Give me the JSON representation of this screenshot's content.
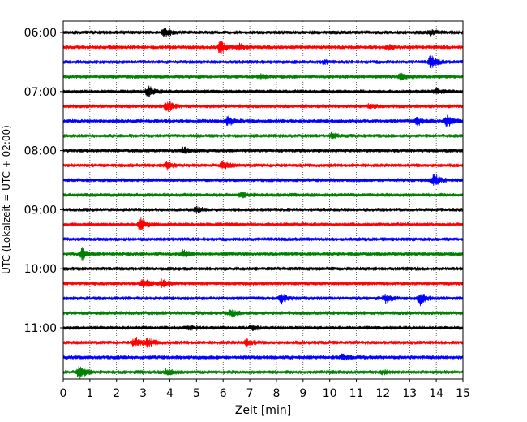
{
  "chart_data": {
    "type": "line",
    "title": "",
    "xlabel": "Zeit  [min]",
    "ylabel": "UTC (Lokalzeit = UTC + 02:00)",
    "xlim": [
      0,
      15
    ],
    "x_ticks": [
      0,
      1,
      2,
      3,
      4,
      5,
      6,
      7,
      8,
      9,
      10,
      11,
      12,
      13,
      14,
      15
    ],
    "y_ticks": [
      "06:00",
      "07:00",
      "08:00",
      "09:00",
      "10:00",
      "11:00"
    ],
    "y_tick_trace_index": [
      0,
      4,
      8,
      12,
      16,
      20
    ],
    "trace_interval_min": 15,
    "trace_colors": [
      "#000000",
      "#ff0000",
      "#0000ff",
      "#008000"
    ],
    "grid": true,
    "series": [
      {
        "start": "06:00",
        "bursts": [
          {
            "t": 3.8,
            "a": 1.0
          },
          {
            "t": 13.8,
            "a": 0.5
          }
        ]
      },
      {
        "start": "06:15",
        "bursts": [
          {
            "t": 5.9,
            "a": 1.2
          },
          {
            "t": 6.6,
            "a": 0.6
          },
          {
            "t": 12.2,
            "a": 0.35
          }
        ]
      },
      {
        "start": "06:30",
        "bursts": [
          {
            "t": 9.8,
            "a": 0.3
          },
          {
            "t": 13.8,
            "a": 1.2
          }
        ]
      },
      {
        "start": "06:45",
        "bursts": [
          {
            "t": 7.4,
            "a": 0.35
          },
          {
            "t": 12.7,
            "a": 0.7
          }
        ]
      },
      {
        "start": "07:00",
        "bursts": [
          {
            "t": 3.2,
            "a": 1.0
          },
          {
            "t": 14.0,
            "a": 0.5
          }
        ]
      },
      {
        "start": "07:15",
        "bursts": [
          {
            "t": 3.9,
            "a": 1.1
          },
          {
            "t": 11.5,
            "a": 0.35
          }
        ]
      },
      {
        "start": "07:30",
        "bursts": [
          {
            "t": 6.2,
            "a": 0.9
          },
          {
            "t": 13.3,
            "a": 0.7
          },
          {
            "t": 14.4,
            "a": 1.1
          }
        ]
      },
      {
        "start": "07:45",
        "bursts": [
          {
            "t": 10.1,
            "a": 0.5
          }
        ]
      },
      {
        "start": "08:00",
        "bursts": [
          {
            "t": 4.5,
            "a": 0.6
          }
        ]
      },
      {
        "start": "08:15",
        "bursts": [
          {
            "t": 3.9,
            "a": 0.7
          },
          {
            "t": 6.0,
            "a": 0.7
          }
        ]
      },
      {
        "start": "08:30",
        "bursts": [
          {
            "t": 13.9,
            "a": 1.3
          }
        ]
      },
      {
        "start": "08:45",
        "bursts": [
          {
            "t": 6.7,
            "a": 0.4
          }
        ]
      },
      {
        "start": "09:00",
        "bursts": [
          {
            "t": 5.0,
            "a": 0.5
          }
        ]
      },
      {
        "start": "09:15",
        "bursts": [
          {
            "t": 2.9,
            "a": 1.1
          }
        ]
      },
      {
        "start": "09:30",
        "bursts": []
      },
      {
        "start": "09:45",
        "bursts": [
          {
            "t": 0.7,
            "a": 1.1
          },
          {
            "t": 4.5,
            "a": 0.7
          }
        ]
      },
      {
        "start": "10:00",
        "bursts": []
      },
      {
        "start": "10:15",
        "bursts": [
          {
            "t": 3.0,
            "a": 0.9
          },
          {
            "t": 3.7,
            "a": 0.7
          }
        ]
      },
      {
        "start": "10:30",
        "bursts": [
          {
            "t": 8.2,
            "a": 0.8
          },
          {
            "t": 12.1,
            "a": 0.8
          },
          {
            "t": 13.4,
            "a": 1.2
          }
        ]
      },
      {
        "start": "10:45",
        "bursts": [
          {
            "t": 6.3,
            "a": 0.6
          }
        ]
      },
      {
        "start": "11:00",
        "bursts": [
          {
            "t": 4.7,
            "a": 0.4
          },
          {
            "t": 7.1,
            "a": 0.4
          }
        ]
      },
      {
        "start": "11:15",
        "bursts": [
          {
            "t": 2.7,
            "a": 1.0
          },
          {
            "t": 3.2,
            "a": 0.8
          },
          {
            "t": 6.9,
            "a": 0.6
          }
        ]
      },
      {
        "start": "11:30",
        "bursts": [
          {
            "t": 10.5,
            "a": 0.5
          }
        ]
      },
      {
        "start": "11:45",
        "bursts": [
          {
            "t": 0.6,
            "a": 1.3
          },
          {
            "t": 3.9,
            "a": 0.6
          },
          {
            "t": 12.0,
            "a": 0.3
          }
        ]
      }
    ]
  }
}
